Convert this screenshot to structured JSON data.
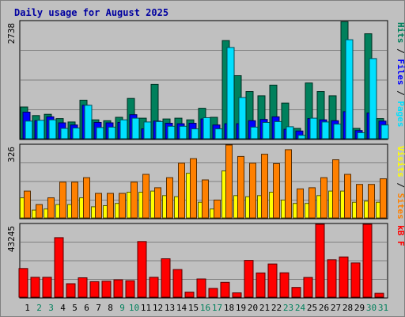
{
  "chart_data": {
    "type": "bar",
    "title": "Daily usage for August 2025",
    "categories": [
      "1",
      "2",
      "3",
      "4",
      "5",
      "6",
      "7",
      "8",
      "9",
      "10",
      "11",
      "12",
      "13",
      "14",
      "15",
      "16",
      "17",
      "18",
      "19",
      "20",
      "21",
      "22",
      "23",
      "24",
      "25",
      "26",
      "27",
      "28",
      "29",
      "30",
      "31"
    ],
    "weekend_days": [
      "2",
      "3",
      "9",
      "10",
      "16",
      "17",
      "23",
      "24",
      "30",
      "31"
    ],
    "panels": [
      {
        "name": "hits-files-pages",
        "ymax": 2738,
        "right_labels": [
          "Pages",
          "Files",
          "Hits"
        ],
        "series": [
          {
            "name": "Hits",
            "color": "#00805c",
            "values": [
              740,
              540,
              570,
              470,
              390,
              900,
              440,
              420,
              500,
              940,
              480,
              1270,
              460,
              480,
              440,
              710,
              500,
              2290,
              1470,
              1100,
              1000,
              1250,
              830,
              240,
              1300,
              1100,
              1000,
              2730,
              240,
              2450,
              470
            ]
          },
          {
            "name": "Files",
            "color": "#0000ff",
            "values": [
              620,
              420,
              510,
              370,
              320,
              780,
              380,
              370,
              380,
              560,
              230,
              410,
              360,
              350,
              360,
              460,
              320,
              350,
              350,
              420,
              450,
              510,
              220,
              180,
              470,
              440,
              420,
              630,
              190,
              600,
              410
            ]
          },
          {
            "name": "Pages",
            "color": "#00e0ff",
            "values": [
              410,
              430,
              440,
              240,
              250,
              780,
              260,
              270,
              440,
              480,
              390,
              400,
              290,
              290,
              230,
              490,
              230,
              2130,
              960,
              270,
              380,
              400,
              280,
              80,
              480,
              390,
              340,
              2310,
              140,
              1870,
              320
            ]
          }
        ]
      },
      {
        "name": "visits-sites",
        "ymax": 326,
        "right_labels": [
          "Sites",
          "Visits"
        ],
        "series": [
          {
            "name": "Visits",
            "color": "#ffff00",
            "values": [
              90,
              35,
              40,
              60,
              60,
              90,
              50,
              55,
              65,
              115,
              115,
              120,
              100,
              95,
              200,
              70,
              40,
              210,
              100,
              95,
              100,
              115,
              80,
              65,
              65,
              100,
              120,
              120,
              70,
              75,
              70
            ]
          },
          {
            "name": "Sites",
            "color": "#ff8000",
            "values": [
              120,
              60,
              90,
              160,
              160,
              180,
              110,
              110,
              110,
              160,
              195,
              135,
              180,
              245,
              265,
              170,
              80,
              380,
              275,
              245,
              285,
              243,
              305,
              130,
              135,
              180,
              260,
              195,
              150,
              150,
              175
            ]
          }
        ]
      },
      {
        "name": "kbf",
        "ymax": 43245,
        "right_labels": [
          "kB F"
        ],
        "series": [
          {
            "name": "kB F",
            "color": "#ff0000",
            "values": [
              17000,
              11800,
              11800,
              35300,
              8000,
              11500,
              9200,
              9500,
              10300,
              9800,
              33000,
              11800,
              22800,
              16400,
              3000,
              10800,
              5200,
              8800,
              2600,
              21800,
              14400,
              19700,
              14500,
              5800,
              11700,
              49000,
              22200,
              23900,
              20300,
              60800,
              2300
            ]
          }
        ]
      }
    ]
  },
  "colors": {
    "title": "#0000a0",
    "weekday_label": "#000000",
    "weekend_label": "#00805c",
    "right_label_hits": "#00805c",
    "right_label_files": "#0000ff",
    "right_label_pages": "#00e0ff",
    "right_label_visits": "#ffff00",
    "right_label_sites": "#ff8000",
    "right_label_kbf": "#ff0000",
    "separator": "#000000"
  }
}
